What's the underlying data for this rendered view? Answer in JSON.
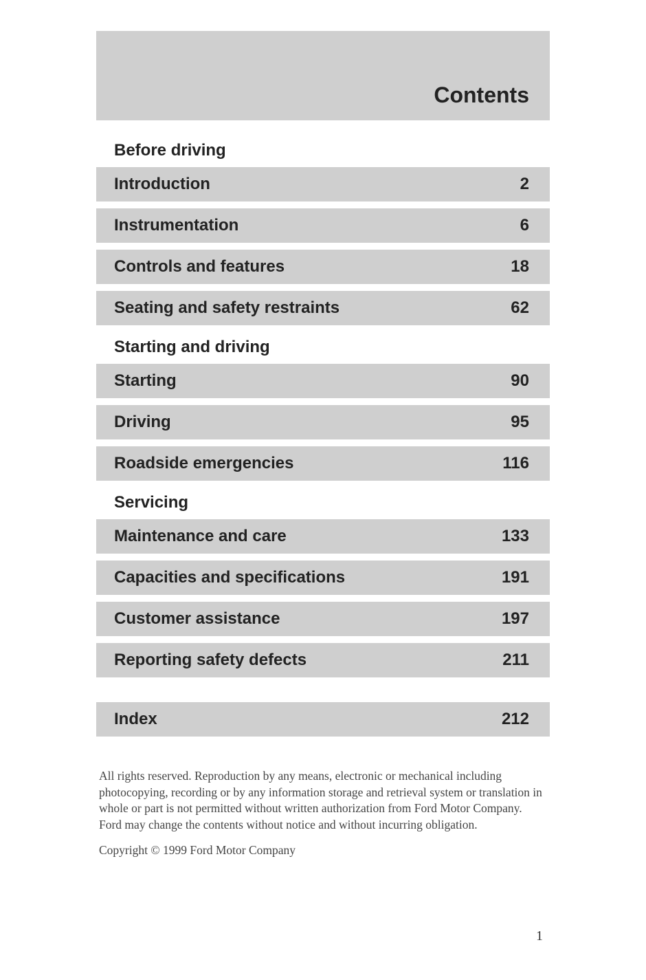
{
  "header": {
    "title": "Contents"
  },
  "sections": [
    {
      "heading": "Before driving",
      "entries": [
        {
          "label": "Introduction",
          "page": "2"
        },
        {
          "label": "Instrumentation",
          "page": "6"
        },
        {
          "label": "Controls and features",
          "page": "18"
        },
        {
          "label": "Seating and safety restraints",
          "page": "62"
        }
      ]
    },
    {
      "heading": "Starting and driving",
      "entries": [
        {
          "label": "Starting",
          "page": "90"
        },
        {
          "label": "Driving",
          "page": "95"
        },
        {
          "label": "Roadside emergencies",
          "page": "116"
        }
      ]
    },
    {
      "heading": "Servicing",
      "entries": [
        {
          "label": "Maintenance and care",
          "page": "133"
        },
        {
          "label": "Capacities and specifications",
          "page": "191"
        },
        {
          "label": "Customer assistance",
          "page": "197"
        },
        {
          "label": "Reporting safety defects",
          "page": "211"
        }
      ]
    }
  ],
  "index_entry": {
    "label": "Index",
    "page": "212"
  },
  "legal": "All rights reserved. Reproduction by any means, electronic or mechanical including photocopying, recording or by any information storage and retrieval system or translation in whole or part is not permitted without written authorization from Ford Motor Company. Ford may change the contents without notice and without incurring obligation.",
  "copyright": "Copyright © 1999 Ford Motor Company",
  "page_number": "1",
  "styles": {
    "header_bg": "#cfcfcf",
    "row_bg": "#cfcfcf",
    "text_color": "#222222",
    "legal_color": "#444444",
    "heading_fontsize": 24,
    "row_fontsize": 24,
    "legal_fontsize": 17.5,
    "header_title_fontsize": 32,
    "row_gap": 10,
    "index_gap": 26
  }
}
